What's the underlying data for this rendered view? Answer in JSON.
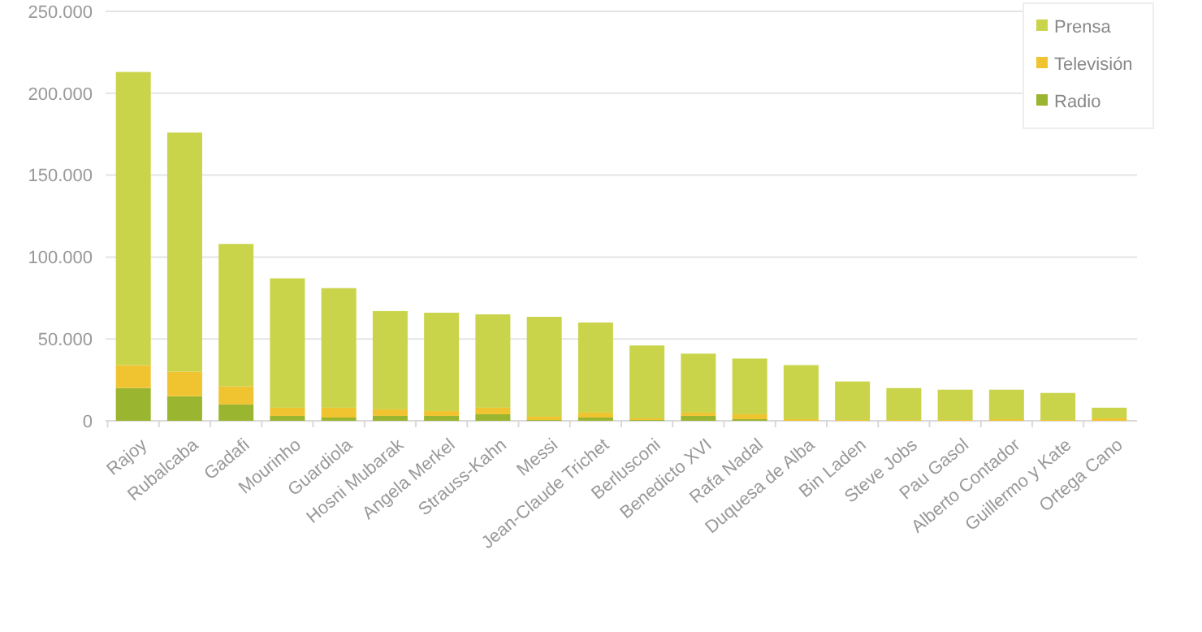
{
  "chart_data": {
    "type": "bar",
    "stacked": true,
    "categories": [
      "Rajoy",
      "Rubalcaba",
      "Gadafi",
      "Mourinho",
      "Guardiola",
      "Hosni Mubarak",
      "Angela Merkel",
      "Strauss-Kahn",
      "Messi",
      "Jean-Claude Trichet",
      "Berlusconi",
      "Benedicto XVI",
      "Rafa Nadal",
      "Duquesa de Alba",
      "Bin Laden",
      "Steve Jobs",
      "Pau Gasol",
      "Alberto Contador",
      "Guillermo y Kate",
      "Ortega Cano"
    ],
    "series": [
      {
        "name": "Radio",
        "color": "#9ab52f",
        "values": [
          20000,
          15000,
          10000,
          3000,
          2000,
          3000,
          3000,
          4000,
          500,
          2000,
          500,
          3000,
          1000,
          0,
          0,
          0,
          0,
          0,
          0,
          0
        ]
      },
      {
        "name": "Televisión",
        "color": "#f0c430",
        "values": [
          14000,
          15000,
          11000,
          5000,
          6000,
          4000,
          3000,
          4000,
          2000,
          3000,
          1000,
          2000,
          3000,
          1000,
          500,
          500,
          500,
          1000,
          500,
          1500
        ]
      },
      {
        "name": "Prensa",
        "color": "#c9d44a",
        "values": [
          179000,
          146000,
          87000,
          79000,
          73000,
          60000,
          60000,
          57000,
          61000,
          55000,
          44500,
          36000,
          34000,
          33000,
          23500,
          19500,
          18500,
          18000,
          16500,
          6500
        ]
      }
    ],
    "ylim": [
      0,
      250000
    ],
    "yticks": [
      {
        "value": 0,
        "label": "0"
      },
      {
        "value": 50000,
        "label": "50.000"
      },
      {
        "value": 100000,
        "label": "100.000"
      },
      {
        "value": 150000,
        "label": "150.000"
      },
      {
        "value": 200000,
        "label": "200.000"
      },
      {
        "value": 250000,
        "label": "250.000"
      }
    ],
    "grid": "y",
    "legend": "top right"
  }
}
